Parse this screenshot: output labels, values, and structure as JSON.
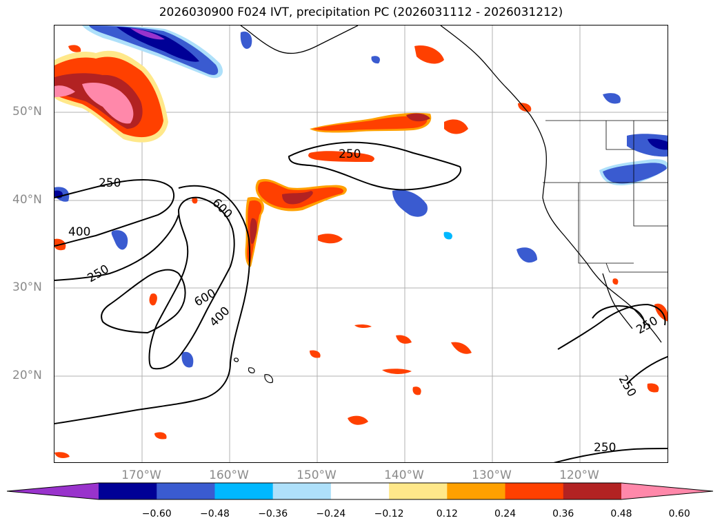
{
  "title": "2026030900 F024 IVT, precipitation PC (2026031112 - 2026031212)",
  "lat_labels": [
    "50°N",
    "40°N",
    "30°N",
    "20°N"
  ],
  "lon_labels": [
    "170°W",
    "160°W",
    "150°W",
    "140°W",
    "130°W",
    "120°W"
  ],
  "contour_labels": [
    "250",
    "400",
    "250",
    "600",
    "600",
    "400",
    "250",
    "250",
    "250",
    "250"
  ],
  "colorbar": {
    "tick_labels": [
      "−0.60",
      "−0.48",
      "−0.36",
      "−0.24",
      "−0.12",
      "0.12",
      "0.24",
      "0.36",
      "0.48",
      "0.60"
    ],
    "colors": [
      "#9933cc",
      "#000096",
      "#3a5bd0",
      "#00b8ff",
      "#aee0fa",
      "#ffffff",
      "#ffe88a",
      "#ffa000",
      "#ff4000",
      "#b22222",
      "#ff88aa"
    ]
  }
}
